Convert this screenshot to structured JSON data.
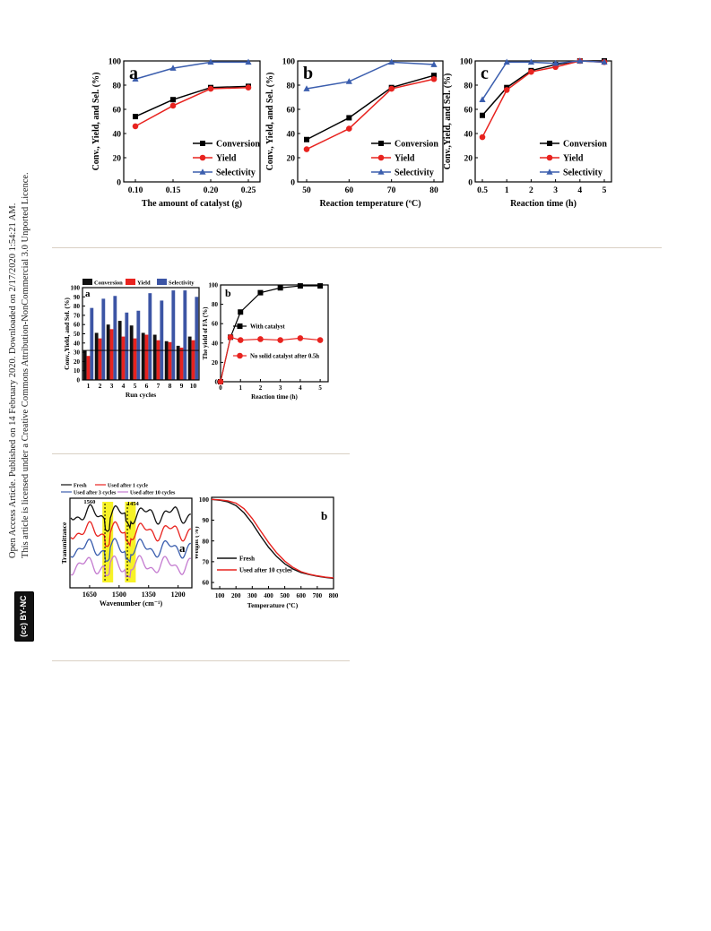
{
  "sidebar": {
    "line1": "Open Access Article. Published on 14 February 2020. Downloaded on 2/17/2020 1:54:21 AM.",
    "line2": "This article is licensed under a Creative Commons Attribution-NonCommercial 3.0 Unported Licence.",
    "badge": "(cc) BY-NC"
  },
  "chart_data": [
    {
      "id": "fig1a",
      "type": "line",
      "panel_label": "a",
      "xlabel": "The amount of catalyst (g)",
      "ylabel": "Conv., Yield, and Sel. (%)",
      "x": [
        0.1,
        0.15,
        0.2,
        0.25
      ],
      "x_ticks": [
        "0.10",
        "0.15",
        "0.20",
        "0.25"
      ],
      "ylim": [
        0,
        100
      ],
      "y_ticks": [
        0,
        20,
        40,
        60,
        80,
        100
      ],
      "legend_position": "bottom-right",
      "series": [
        {
          "name": "Conversion",
          "values": [
            54,
            68,
            78,
            79
          ],
          "color": "#000000",
          "marker": "square"
        },
        {
          "name": "Yield",
          "values": [
            46,
            63,
            77,
            78
          ],
          "color": "#e8231f",
          "marker": "circle"
        },
        {
          "name": "Selectivity",
          "values": [
            85,
            94,
            99,
            99
          ],
          "color": "#3b5eae",
          "marker": "triangle"
        }
      ]
    },
    {
      "id": "fig1b",
      "type": "line",
      "panel_label": "b",
      "xlabel": "Reaction temperature (ºC)",
      "ylabel": "Conv., Yield, and Sel. (%)",
      "x": [
        50,
        60,
        70,
        80
      ],
      "x_ticks": [
        "50",
        "60",
        "70",
        "80"
      ],
      "ylim": [
        0,
        100
      ],
      "y_ticks": [
        0,
        20,
        40,
        60,
        80,
        100
      ],
      "legend_position": "bottom-right",
      "series": [
        {
          "name": "Conversion",
          "values": [
            35,
            53,
            78,
            88
          ],
          "color": "#000000",
          "marker": "square"
        },
        {
          "name": "Yield",
          "values": [
            27,
            44,
            77,
            85
          ],
          "color": "#e8231f",
          "marker": "circle"
        },
        {
          "name": "Selectivity",
          "values": [
            77,
            83,
            99,
            97
          ],
          "color": "#3b5eae",
          "marker": "triangle"
        }
      ]
    },
    {
      "id": "fig1c",
      "type": "line",
      "panel_label": "c",
      "xlabel": "Reaction time (h)",
      "ylabel": "Conv.,Yield, and Sel. (%)",
      "x": [
        0.5,
        1,
        2,
        3,
        4,
        5
      ],
      "x_ticks": [
        "0.5",
        "1",
        "2",
        "3",
        "4",
        "5"
      ],
      "ylim": [
        0,
        100
      ],
      "y_ticks": [
        0,
        20,
        40,
        60,
        80,
        100
      ],
      "legend_position": "bottom-right",
      "series": [
        {
          "name": "Conversion",
          "values": [
            55,
            78,
            92,
            97,
            100,
            100
          ],
          "color": "#000000",
          "marker": "square"
        },
        {
          "name": "Yield",
          "values": [
            37,
            76,
            91,
            95,
            100,
            99
          ],
          "color": "#e8231f",
          "marker": "circle"
        },
        {
          "name": "Selectivity",
          "values": [
            68,
            99,
            99,
            98,
            100,
            99
          ],
          "color": "#3b5eae",
          "marker": "triangle"
        }
      ]
    },
    {
      "id": "fig2a",
      "type": "bar",
      "panel_label": "a",
      "xlabel": "Run cycles",
      "ylabel": "Conv.,Yield, and Sel. (%)",
      "categories": [
        "1",
        "2",
        "3",
        "4",
        "5",
        "6",
        "7",
        "8",
        "9",
        "10"
      ],
      "ylim": [
        0,
        100
      ],
      "y_ticks": [
        0,
        10,
        20,
        30,
        40,
        50,
        60,
        70,
        80,
        90,
        100
      ],
      "legend_position": "top",
      "reference_line": 32,
      "series": [
        {
          "name": "Conversion",
          "values": [
            32,
            51,
            60,
            64,
            59,
            51,
            49,
            42,
            37,
            47
          ],
          "color": "#111111"
        },
        {
          "name": "Yield",
          "values": [
            26,
            45,
            55,
            47,
            45,
            49,
            43,
            41,
            35,
            43
          ],
          "color": "#e8231f"
        },
        {
          "name": "Selectivity",
          "values": [
            78,
            88,
            91,
            73,
            75,
            94,
            86,
            97,
            97,
            90
          ],
          "color": "#3c55a5"
        }
      ]
    },
    {
      "id": "fig2b",
      "type": "line",
      "panel_label": "b",
      "xlabel": "Reaction time (h)",
      "ylabel": "The yield of FA (%)",
      "x": [
        0,
        0.5,
        1,
        2,
        3,
        4,
        5
      ],
      "x_ticks": [
        "0",
        "1",
        "2",
        "3",
        "4",
        "5"
      ],
      "ylim": [
        0,
        100
      ],
      "y_ticks": [
        0,
        20,
        40,
        60,
        80,
        100
      ],
      "legend_position": "center-right",
      "series": [
        {
          "name": "With catalyst",
          "x": [
            0,
            0.5,
            1,
            2,
            3,
            4,
            5
          ],
          "values": [
            0,
            46,
            72,
            92,
            97,
            99,
            99
          ],
          "color": "#000000",
          "marker": "square"
        },
        {
          "name": "No solid catalyst after 0.5h",
          "x": [
            0,
            0.5,
            1,
            2,
            3,
            4,
            5
          ],
          "values": [
            0,
            46,
            43,
            44,
            43,
            45,
            43
          ],
          "color": "#e8231f",
          "marker": "circle"
        }
      ]
    },
    {
      "id": "fig3a",
      "type": "line",
      "panel_label": "a",
      "xlabel": "Wavenumber (cm⁻¹)",
      "ylabel": "Transmittance",
      "x_ticks": [
        "1650",
        "1500",
        "1350",
        "1200"
      ],
      "xlim": [
        1750,
        1130
      ],
      "annotations": [
        "1560",
        "1454"
      ],
      "legend_position": "top",
      "series": [
        {
          "name": "Fresh",
          "color": "#111111"
        },
        {
          "name": "Used after 1 cycle",
          "color": "#e8231f"
        },
        {
          "name": "Used after 3 cycles",
          "color": "#3b5eae"
        },
        {
          "name": "Used after 10 cycles",
          "color": "#c47bd0"
        }
      ]
    },
    {
      "id": "fig3b",
      "type": "line",
      "panel_label": "b",
      "xlabel": "Temperature (ºC)",
      "ylabel": "Weight (%)",
      "x_ticks": [
        "100",
        "200",
        "300",
        "400",
        "500",
        "600",
        "700",
        "800"
      ],
      "xlim": [
        50,
        800
      ],
      "ylim": [
        57,
        101
      ],
      "y_ticks": [
        60,
        70,
        80,
        90,
        100
      ],
      "legend_position": "bottom-left",
      "series": [
        {
          "name": "Fresh",
          "color": "#111111",
          "x": [
            50,
            100,
            150,
            200,
            250,
            300,
            350,
            400,
            450,
            500,
            550,
            600,
            650,
            700,
            750,
            800
          ],
          "values": [
            100,
            99.6,
            98.8,
            97.0,
            93.5,
            88.5,
            82.5,
            77.0,
            72.5,
            69.0,
            66.5,
            64.8,
            63.8,
            63.0,
            62.4,
            62.0
          ]
        },
        {
          "name": "Used after 10 cycles",
          "color": "#e8231f",
          "x": [
            50,
            100,
            150,
            200,
            250,
            300,
            350,
            400,
            450,
            500,
            550,
            600,
            650,
            700,
            750,
            800
          ],
          "values": [
            100,
            99.8,
            99.3,
            98.2,
            95.5,
            90.8,
            85.0,
            79.3,
            74.3,
            70.3,
            67.3,
            65.2,
            64.0,
            63.2,
            62.6,
            62.2
          ]
        }
      ]
    }
  ]
}
